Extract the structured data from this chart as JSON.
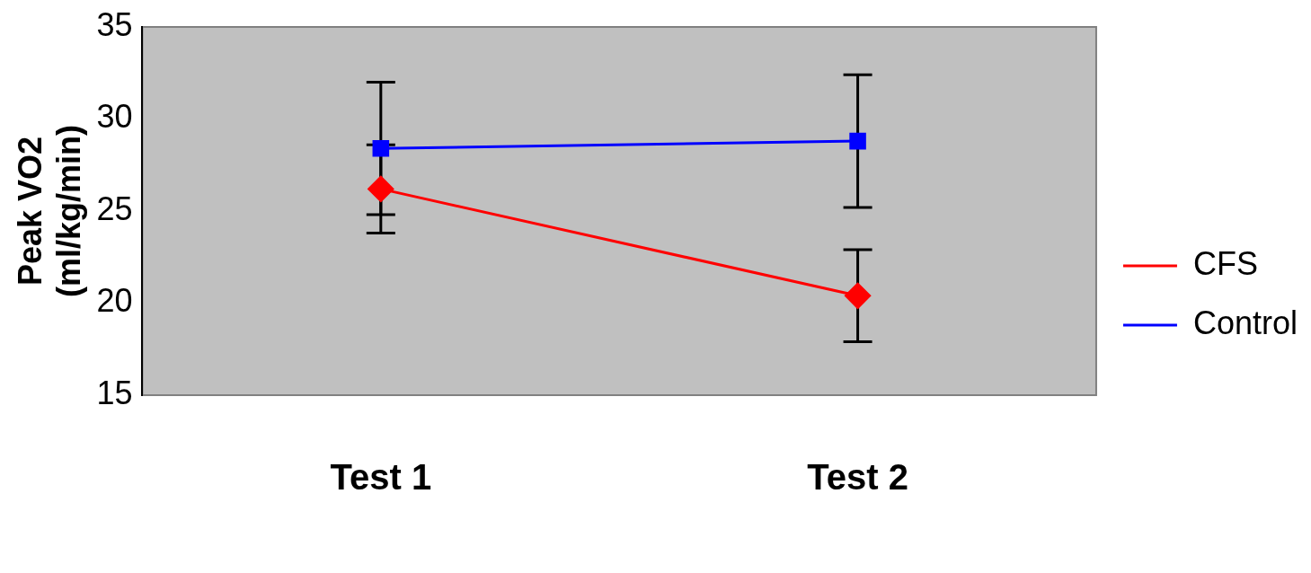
{
  "chart_data": {
    "type": "line",
    "ylabel": "Peak VO2\n(ml/kg/min)",
    "categories": [
      "Test 1",
      "Test 2"
    ],
    "series": [
      {
        "name": "CFS",
        "color": "#ff0000",
        "values": [
          26.2,
          20.4
        ],
        "errors": [
          2.4,
          2.5
        ],
        "marker": "diamond"
      },
      {
        "name": "Control",
        "color": "#0000ff",
        "values": [
          28.4,
          28.8
        ],
        "errors": [
          3.6,
          3.6
        ],
        "marker": "square"
      }
    ],
    "ylim": [
      15,
      35
    ],
    "yticks": [
      15,
      20,
      25,
      30,
      35
    ],
    "grid": false,
    "legend": "right",
    "line_style": "solid"
  }
}
